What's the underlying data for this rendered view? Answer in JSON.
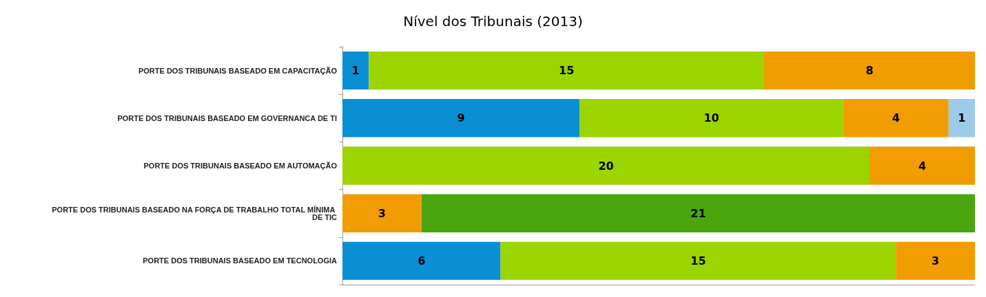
{
  "chart_data": {
    "type": "bar",
    "orientation": "horizontal",
    "stacked": true,
    "title": "Nível dos Tribunais (2013)",
    "categories": [
      "PORTE DOS TRIBUNAIS BASEADO EM CAPACITAÇÃO",
      "PORTE DOS TRIBUNAIS BASEADO EM GOVERNANCA DE TI",
      "PORTE DOS TRIBUNAIS BASEADO EM AUTOMAÇÃO",
      "PORTE DOS TRIBUNAIS BASEADO NA FORÇA DE TRABALHO TOTAL MÍNIMA DE TIC",
      "PORTE DOS TRIBUNAIS BASEADO EM TECNOLOGIA"
    ],
    "series": [
      {
        "color": "#0a8fd4",
        "values": [
          1,
          9,
          null,
          null,
          6
        ]
      },
      {
        "color": "#9cd400",
        "values": [
          15,
          10,
          20,
          null,
          15
        ]
      },
      {
        "color": "#f19c00",
        "values": [
          8,
          4,
          4,
          3,
          3
        ]
      },
      {
        "color": "#9dcbea",
        "values": [
          null,
          1,
          null,
          null,
          null
        ]
      },
      {
        "color": "#4aa50e",
        "values": [
          null,
          null,
          null,
          21,
          null
        ]
      }
    ],
    "xlim": [
      0,
      24
    ],
    "data_labels": true,
    "grid": false
  }
}
